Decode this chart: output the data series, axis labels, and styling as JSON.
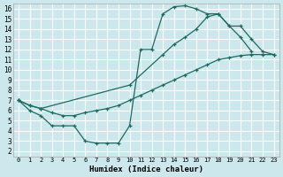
{
  "bg_color": "#cce8ec",
  "grid_color": "#ffffff",
  "line_color": "#1a6b60",
  "xlabel": "Humidex (Indice chaleur)",
  "xlim": [
    -0.5,
    23.5
  ],
  "ylim": [
    1.5,
    16.5
  ],
  "xticks": [
    0,
    1,
    2,
    3,
    4,
    5,
    6,
    7,
    8,
    9,
    10,
    11,
    12,
    13,
    14,
    15,
    16,
    17,
    18,
    19,
    20,
    21,
    22,
    23
  ],
  "yticks": [
    2,
    3,
    4,
    5,
    6,
    7,
    8,
    9,
    10,
    11,
    12,
    13,
    14,
    15,
    16
  ],
  "line1_x": [
    0,
    1,
    2,
    3,
    4,
    5,
    6,
    7,
    8,
    9,
    10,
    11,
    12,
    13,
    14,
    15,
    16,
    17,
    18,
    19,
    20,
    21
  ],
  "line1_y": [
    7,
    6,
    5.5,
    4.5,
    4.5,
    4.5,
    3.0,
    2.8,
    2.8,
    2.8,
    4.5,
    12.0,
    12.0,
    15.5,
    16.2,
    16.3,
    16.0,
    15.5,
    15.5,
    14.3,
    13.2,
    11.8
  ],
  "line2_x": [
    0,
    1,
    2,
    3,
    4,
    5,
    6,
    7,
    8,
    9,
    10,
    11,
    12,
    13,
    14,
    15,
    16,
    17,
    18,
    19,
    20,
    21,
    22,
    23
  ],
  "line2_y": [
    7,
    6.5,
    6.2,
    5.8,
    5.5,
    5.5,
    5.8,
    6.0,
    6.2,
    6.5,
    7.0,
    7.5,
    8.0,
    8.5,
    9.0,
    9.5,
    10.0,
    10.5,
    11.0,
    11.2,
    11.4,
    11.5,
    11.5,
    11.5
  ],
  "line3_x": [
    0,
    1,
    2,
    10,
    13,
    14,
    15,
    16,
    17,
    18,
    19,
    20,
    21,
    22,
    23
  ],
  "line3_y": [
    7,
    6.5,
    6.2,
    8.5,
    11.5,
    12.5,
    13.2,
    14.0,
    15.2,
    15.5,
    14.3,
    14.3,
    13.0,
    11.8,
    11.5
  ]
}
